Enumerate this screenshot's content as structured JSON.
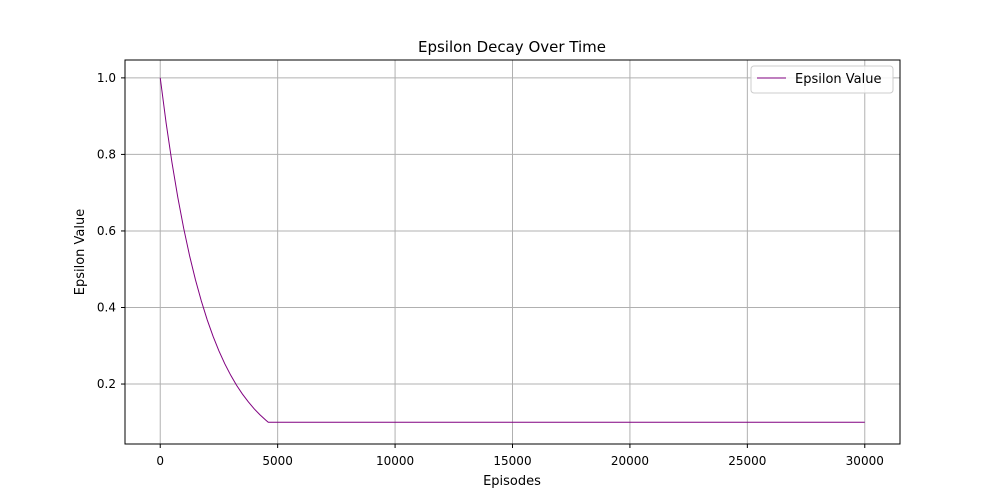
{
  "chart_data": {
    "type": "line",
    "title": "Epsilon Decay Over Time",
    "xlabel": "Episodes",
    "ylabel": "Epsilon Value",
    "xlim": [
      -1500,
      31500
    ],
    "ylim": [
      0.0433,
      1.0467
    ],
    "xticks": [
      0,
      5000,
      10000,
      15000,
      20000,
      25000,
      30000
    ],
    "yticks": [
      0.2,
      0.4,
      0.6,
      0.8,
      1.0
    ],
    "xtick_labels": [
      "0",
      "5000",
      "10000",
      "15000",
      "20000",
      "25000",
      "30000"
    ],
    "ytick_labels": [
      "0.2",
      "0.4",
      "0.6",
      "0.8",
      "1.0"
    ],
    "grid": true,
    "legend_position": "top-right",
    "series": [
      {
        "name": "Epsilon Value",
        "color": "#800080",
        "x": [
          0,
          250,
          500,
          750,
          1000,
          1250,
          1500,
          1750,
          2000,
          2250,
          2500,
          2750,
          3000,
          3250,
          3500,
          3750,
          4000,
          4250,
          4500,
          4600,
          5000,
          10000,
          15000,
          20000,
          25000,
          30000
        ],
        "y": [
          1.0,
          0.8825,
          0.7788,
          0.6873,
          0.6065,
          0.5353,
          0.4724,
          0.4169,
          0.3679,
          0.3247,
          0.2865,
          0.2528,
          0.2231,
          0.1969,
          0.1738,
          0.1534,
          0.1353,
          0.1194,
          0.1054,
          0.1,
          0.1,
          0.1,
          0.1,
          0.1,
          0.1,
          0.1
        ]
      }
    ]
  }
}
